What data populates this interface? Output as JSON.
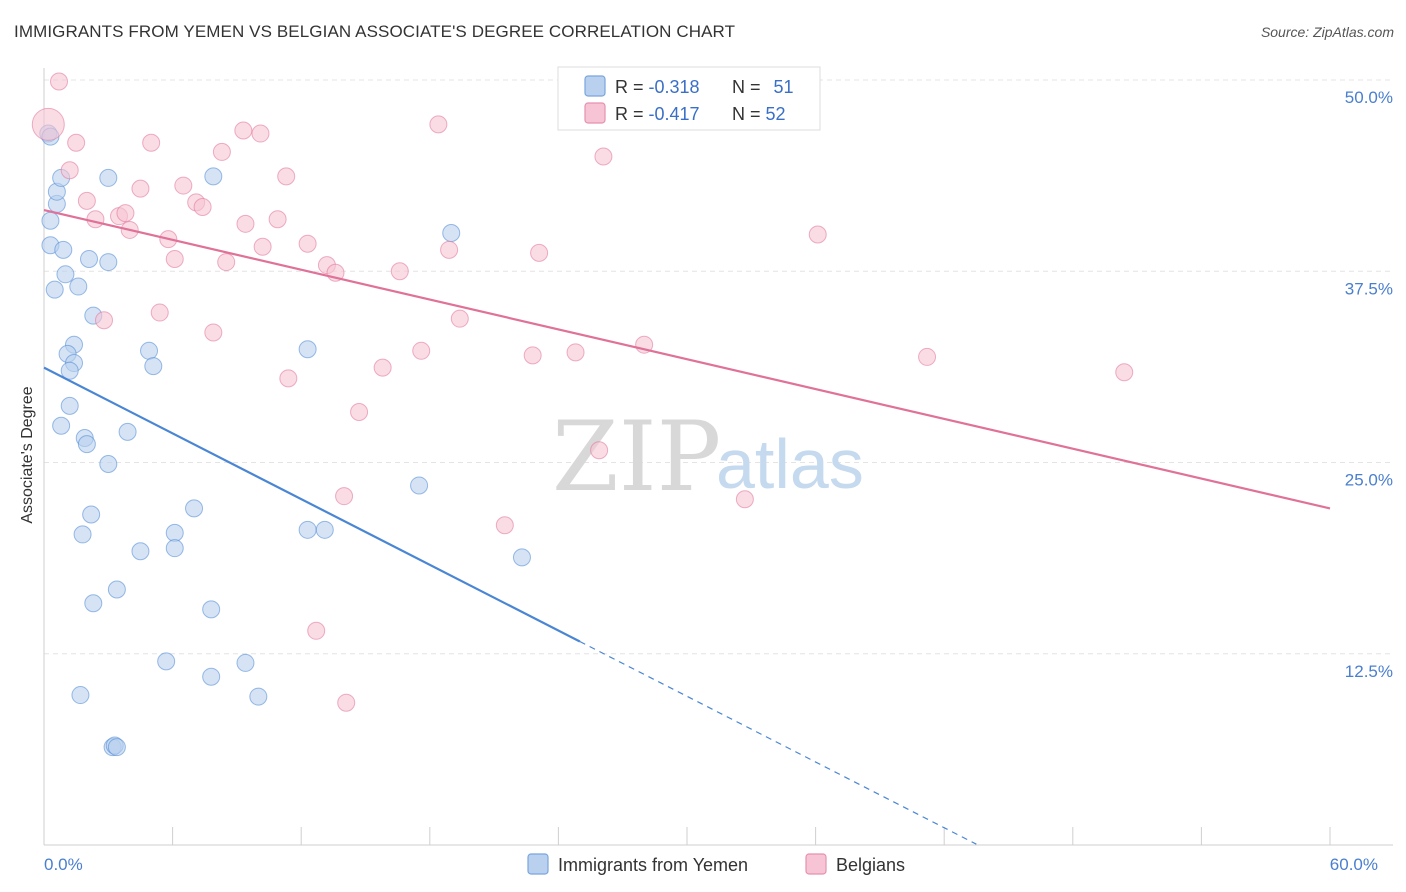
{
  "title": "IMMIGRANTS FROM YEMEN VS BELGIAN ASSOCIATE'S DEGREE CORRELATION CHART",
  "source": "Source: ZipAtlas.com",
  "watermark": {
    "zip": "ZIP",
    "atlas": "atlas"
  },
  "chart_data": {
    "type": "scatter",
    "title": "IMMIGRANTS FROM YEMEN VS BELGIAN ASSOCIATE'S DEGREE CORRELATION CHART",
    "xlabel": "",
    "ylabel": "Associate's Degree",
    "xlim": [
      0,
      60
    ],
    "ylim": [
      0,
      50
    ],
    "x_tick_labels": [
      {
        "value": 0,
        "label": "0.0%"
      },
      {
        "value": 60,
        "label": "60.0%"
      }
    ],
    "y_tick_labels": [
      {
        "value": 12.5,
        "label": "12.5%"
      },
      {
        "value": 25,
        "label": "25.0%"
      },
      {
        "value": 37.5,
        "label": "37.5%"
      },
      {
        "value": 50,
        "label": "50.0%"
      }
    ],
    "grid": true,
    "legend": {
      "position": "top-center",
      "rows": [
        {
          "r_label": "R = ",
          "r_value": "-0.318",
          "n_label": "N = ",
          "n_value": "51"
        },
        {
          "r_label": "R = ",
          "r_value": "-0.417",
          "n_label": "N = ",
          "n_value": "52"
        }
      ]
    },
    "series": [
      {
        "name": "Immigrants from Yemen",
        "color": "#4a86d4",
        "fill": "#b9d0ef",
        "trend": {
          "x0": 0,
          "y0": 31.2,
          "x1": 25.0,
          "y1": 13.3,
          "dash_to_x": 43.5
        },
        "points": [
          [
            0.2,
            46.5
          ],
          [
            0.3,
            46.3
          ],
          [
            0.6,
            41.9
          ],
          [
            0.6,
            42.7
          ],
          [
            0.8,
            43.6
          ],
          [
            0.3,
            40.8
          ],
          [
            0.3,
            39.2
          ],
          [
            0.9,
            38.9
          ],
          [
            1.0,
            37.3
          ],
          [
            0.5,
            36.3
          ],
          [
            1.6,
            36.5
          ],
          [
            3.0,
            43.6
          ],
          [
            7.9,
            43.7
          ],
          [
            2.1,
            38.3
          ],
          [
            3.0,
            38.1
          ],
          [
            2.3,
            34.6
          ],
          [
            1.4,
            32.7
          ],
          [
            1.1,
            32.1
          ],
          [
            1.4,
            31.5
          ],
          [
            1.2,
            31.0
          ],
          [
            4.9,
            32.3
          ],
          [
            5.1,
            31.3
          ],
          [
            12.3,
            32.4
          ],
          [
            19.0,
            40.0
          ],
          [
            1.2,
            28.7
          ],
          [
            0.8,
            27.4
          ],
          [
            1.9,
            26.6
          ],
          [
            2.0,
            26.2
          ],
          [
            3.9,
            27.0
          ],
          [
            3.0,
            24.9
          ],
          [
            17.5,
            23.5
          ],
          [
            2.2,
            21.6
          ],
          [
            1.8,
            20.3
          ],
          [
            7.0,
            22.0
          ],
          [
            6.1,
            20.4
          ],
          [
            6.1,
            19.4
          ],
          [
            4.5,
            19.2
          ],
          [
            12.3,
            20.6
          ],
          [
            13.1,
            20.6
          ],
          [
            22.3,
            18.8
          ],
          [
            3.4,
            16.7
          ],
          [
            2.3,
            15.8
          ],
          [
            7.8,
            15.4
          ],
          [
            5.7,
            12.0
          ],
          [
            9.4,
            11.9
          ],
          [
            7.8,
            11.0
          ],
          [
            1.7,
            9.8
          ],
          [
            10.0,
            9.7
          ],
          [
            3.2,
            6.4
          ],
          [
            3.3,
            6.5
          ],
          [
            3.4,
            6.4
          ]
        ]
      },
      {
        "name": "Belgians",
        "color": "#e07198",
        "fill": "#f6c4d4",
        "trend": {
          "x0": 0,
          "y0": 41.5,
          "x1": 60,
          "y1": 22.0
        },
        "points": [
          [
            0.2,
            47.1
          ],
          [
            0.7,
            49.9
          ],
          [
            1.5,
            45.9
          ],
          [
            1.2,
            44.1
          ],
          [
            5.0,
            45.9
          ],
          [
            9.3,
            46.7
          ],
          [
            10.1,
            46.5
          ],
          [
            8.3,
            45.3
          ],
          [
            18.4,
            47.1
          ],
          [
            26.1,
            45.0
          ],
          [
            2.0,
            42.1
          ],
          [
            4.5,
            42.9
          ],
          [
            6.5,
            43.1
          ],
          [
            7.1,
            42.0
          ],
          [
            7.4,
            41.7
          ],
          [
            11.3,
            43.7
          ],
          [
            2.4,
            40.9
          ],
          [
            3.5,
            41.1
          ],
          [
            3.8,
            41.3
          ],
          [
            4.0,
            40.2
          ],
          [
            9.4,
            40.6
          ],
          [
            10.9,
            40.9
          ],
          [
            5.8,
            39.6
          ],
          [
            6.1,
            38.3
          ],
          [
            8.5,
            38.1
          ],
          [
            10.2,
            39.1
          ],
          [
            12.3,
            39.3
          ],
          [
            13.2,
            37.9
          ],
          [
            13.6,
            37.4
          ],
          [
            16.6,
            37.5
          ],
          [
            18.9,
            38.9
          ],
          [
            23.1,
            38.7
          ],
          [
            36.1,
            39.9
          ],
          [
            2.8,
            34.3
          ],
          [
            5.4,
            34.8
          ],
          [
            7.9,
            33.5
          ],
          [
            19.4,
            34.4
          ],
          [
            17.6,
            32.3
          ],
          [
            22.8,
            32.0
          ],
          [
            24.8,
            32.2
          ],
          [
            28.0,
            32.7
          ],
          [
            41.2,
            31.9
          ],
          [
            15.8,
            31.2
          ],
          [
            11.4,
            30.5
          ],
          [
            50.4,
            30.9
          ],
          [
            14.7,
            28.3
          ],
          [
            25.9,
            25.8
          ],
          [
            14.0,
            22.8
          ],
          [
            32.7,
            22.6
          ],
          [
            21.5,
            20.9
          ],
          [
            12.7,
            14.0
          ],
          [
            14.1,
            9.3
          ]
        ]
      }
    ]
  }
}
